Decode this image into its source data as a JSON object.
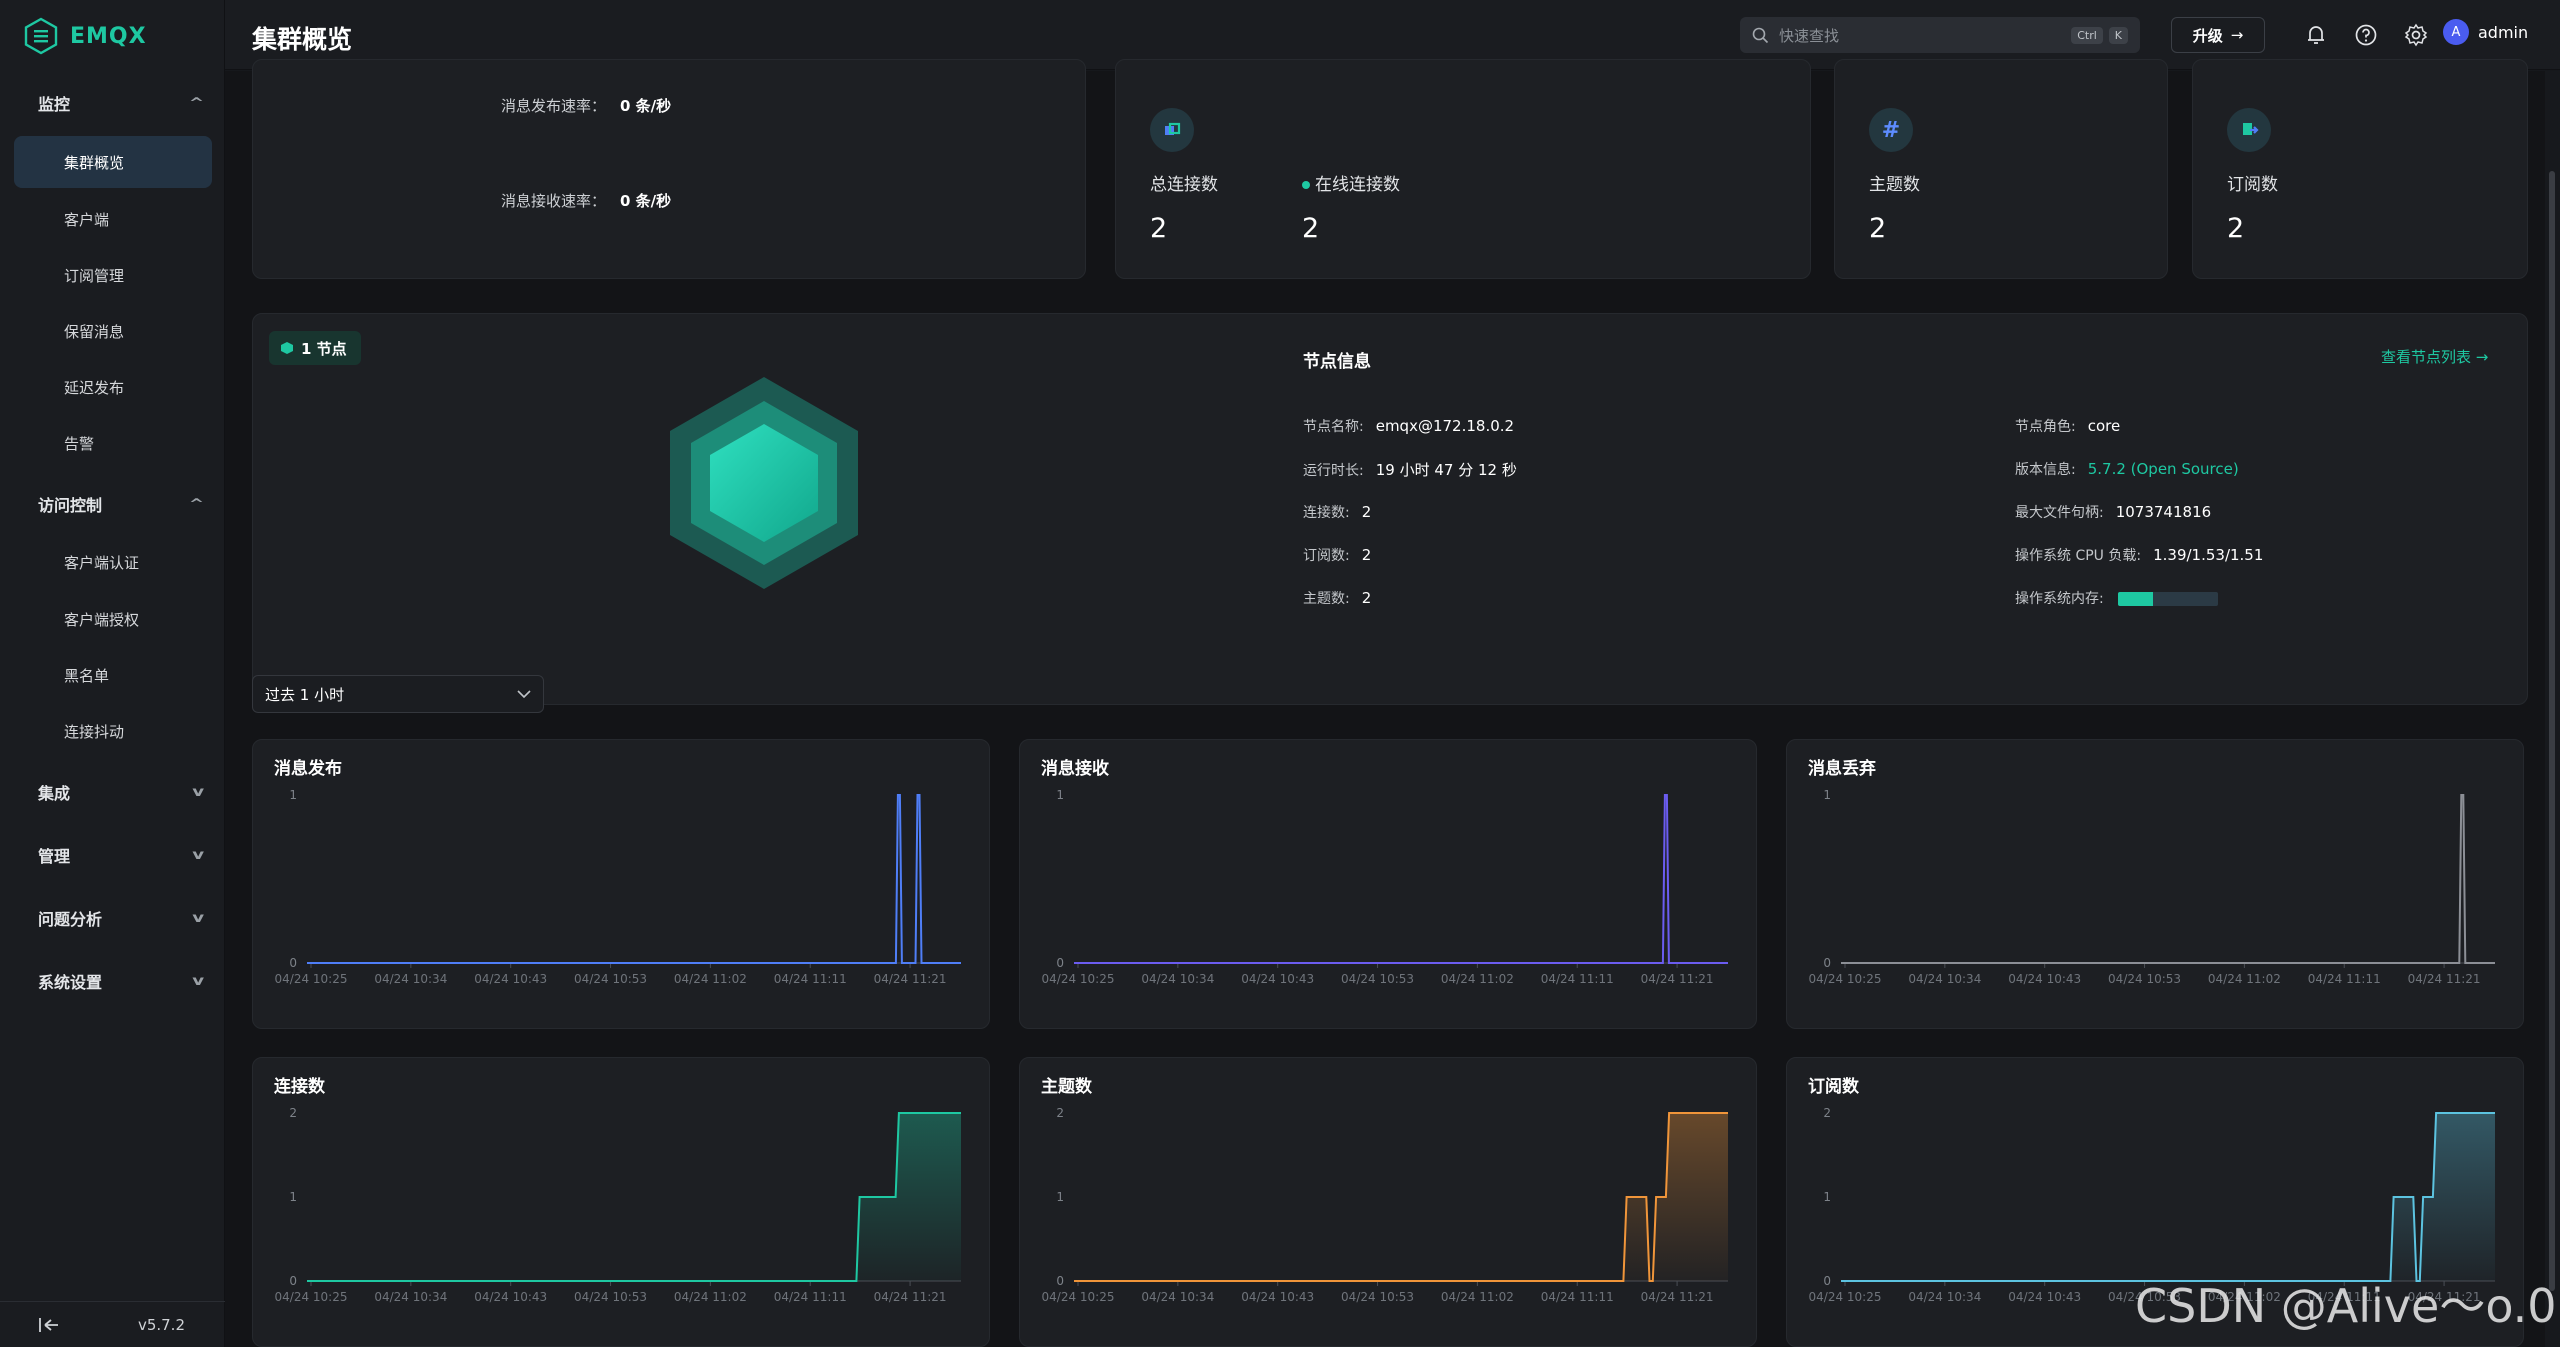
{
  "app": {
    "name": "EMQX",
    "version": "v5.7.2",
    "brand_color": "#1ec8a2"
  },
  "sidebar": {
    "groups": [
      {
        "label": "监控",
        "expanded": true
      },
      {
        "label": "访问控制",
        "expanded": true
      },
      {
        "label": "集成",
        "expanded": false
      },
      {
        "label": "管理",
        "expanded": false
      },
      {
        "label": "问题分析",
        "expanded": false
      },
      {
        "label": "系统设置",
        "expanded": false
      }
    ],
    "monitor_items": [
      "集群概览",
      "客户端",
      "订阅管理",
      "保留消息",
      "延迟发布",
      "告警"
    ],
    "access_items": [
      "客户端认证",
      "客户端授权",
      "黑名单",
      "连接抖动"
    ],
    "active_item": "集群概览",
    "collapse_icon": "collapse-sidebar-icon"
  },
  "header": {
    "title": "集群概览",
    "search_placeholder": "快速查找",
    "shortcut_keys": [
      "Ctrl",
      "K"
    ],
    "upgrade_label": "升级",
    "username": "admin",
    "avatar_letter": "A"
  },
  "rates": [
    {
      "label": "消息发布速率：",
      "value": "0 条/秒"
    },
    {
      "label": "消息接收速率：",
      "value": "0 条/秒"
    }
  ],
  "stats": {
    "total_connections": {
      "label": "总连接数",
      "value": "2"
    },
    "online_connections": {
      "label": "在线连接数",
      "value": "2"
    },
    "topics": {
      "label": "主题数",
      "value": "2"
    },
    "subscriptions": {
      "label": "订阅数",
      "value": "2"
    }
  },
  "node": {
    "badge": "1 节点",
    "section_title": "节点信息",
    "view_list_link": "查看节点列表 →",
    "left": [
      {
        "label": "节点名称:",
        "value": "emqx@172.18.0.2"
      },
      {
        "label": "运行时长:",
        "value": "19 小时 47 分 12 秒"
      },
      {
        "label": "连接数:",
        "value": "2"
      },
      {
        "label": "订阅数:",
        "value": "2"
      },
      {
        "label": "主题数:",
        "value": "2"
      }
    ],
    "right": [
      {
        "label": "节点角色:",
        "value": "core"
      },
      {
        "label": "版本信息:",
        "value": "5.7.2 (Open Source)"
      },
      {
        "label": "最大文件句柄:",
        "value": "1073741816"
      },
      {
        "label": "操作系统 CPU 负载:",
        "value": "1.39/1.53/1.51"
      },
      {
        "label": "操作系统内存:",
        "value": ""
      }
    ],
    "memory_usage_fraction": 0.35
  },
  "time_range": {
    "selected": "过去 1 小时"
  },
  "chart_data": [
    {
      "type": "line",
      "title": "消息发布",
      "color": "#4f7ef7",
      "x": [
        "04/24 10:25",
        "04/24 10:34",
        "04/24 10:43",
        "04/24 10:53",
        "04/24 11:02",
        "04/24 11:11",
        "04/24 11:21"
      ],
      "ylim": [
        0,
        1
      ],
      "yticks": [
        "1",
        "0"
      ],
      "spikes": [
        0.905,
        0.935
      ],
      "steps": null,
      "area": false
    },
    {
      "type": "line",
      "title": "消息接收",
      "color": "#6b5cf0",
      "x": [
        "04/24 10:25",
        "04/24 10:34",
        "04/24 10:43",
        "04/24 10:53",
        "04/24 11:02",
        "04/24 11:11",
        "04/24 11:21"
      ],
      "ylim": [
        0,
        1
      ],
      "yticks": [
        "1",
        "0"
      ],
      "spikes": [
        0.905
      ],
      "steps": null,
      "area": false
    },
    {
      "type": "line",
      "title": "消息丢弃",
      "color": "#8c8f96",
      "x": [
        "04/24 10:25",
        "04/24 10:34",
        "04/24 10:43",
        "04/24 10:53",
        "04/24 11:02",
        "04/24 11:11",
        "04/24 11:21"
      ],
      "ylim": [
        0,
        1
      ],
      "yticks": [
        "1",
        "0"
      ],
      "spikes": [
        0.95
      ],
      "steps": null,
      "area": false
    },
    {
      "type": "area",
      "title": "连接数",
      "color": "#1ec8a2",
      "x": [
        "04/24 10:25",
        "04/24 10:34",
        "04/24 10:43",
        "04/24 10:53",
        "04/24 11:02",
        "04/24 11:11",
        "04/24 11:21"
      ],
      "ylim": [
        0,
        2
      ],
      "yticks": [
        "2",
        "1",
        "0"
      ],
      "spikes": null,
      "steps": [
        [
          0,
          0
        ],
        [
          0.84,
          0
        ],
        [
          0.845,
          1
        ],
        [
          0.9,
          1
        ],
        [
          0.905,
          2
        ],
        [
          1.0,
          2
        ]
      ],
      "area": true
    },
    {
      "type": "area",
      "title": "主题数",
      "color": "#f0953a",
      "x": [
        "04/24 10:25",
        "04/24 10:34",
        "04/24 10:43",
        "04/24 10:53",
        "04/24 11:02",
        "04/24 11:11",
        "04/24 11:21"
      ],
      "ylim": [
        0,
        2
      ],
      "yticks": [
        "2",
        "1",
        "0"
      ],
      "spikes": null,
      "steps": [
        [
          0,
          0
        ],
        [
          0.84,
          0
        ],
        [
          0.845,
          1
        ],
        [
          0.875,
          1
        ],
        [
          0.88,
          0
        ],
        [
          0.885,
          0
        ],
        [
          0.89,
          1
        ],
        [
          0.905,
          1
        ],
        [
          0.91,
          2
        ],
        [
          1.0,
          2
        ]
      ],
      "area": true
    },
    {
      "type": "area",
      "title": "订阅数",
      "color": "#5cc3e0",
      "x": [
        "04/24 10:25",
        "04/24 10:34",
        "04/24 10:43",
        "04/24 10:53",
        "04/24 11:02",
        "04/24 11:11",
        "04/24 11:21"
      ],
      "ylim": [
        0,
        2
      ],
      "yticks": [
        "2",
        "1",
        "0"
      ],
      "spikes": null,
      "steps": [
        [
          0,
          0
        ],
        [
          0.84,
          0
        ],
        [
          0.845,
          1
        ],
        [
          0.875,
          1
        ],
        [
          0.88,
          0
        ],
        [
          0.885,
          0
        ],
        [
          0.89,
          1
        ],
        [
          0.905,
          1
        ],
        [
          0.91,
          2
        ],
        [
          1.0,
          2
        ]
      ],
      "area": true
    }
  ],
  "watermark": "CSDN @Alive～o.0"
}
